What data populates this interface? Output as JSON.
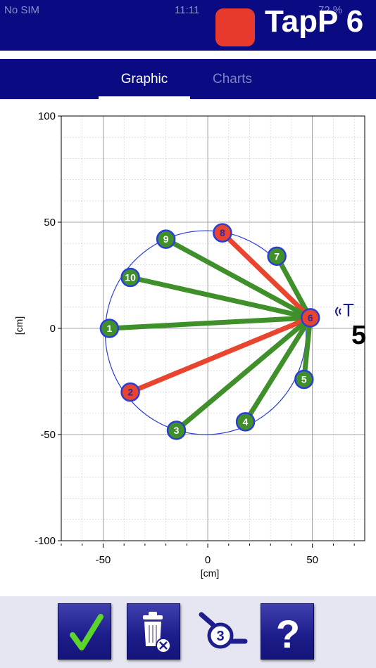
{
  "status_bar": {
    "carrier": "No SIM",
    "time": "11:11",
    "battery": "72 %"
  },
  "header": {
    "title": "TapP 6",
    "app_icon_color": "#e83a2c"
  },
  "tabs": [
    {
      "label": "Graphic",
      "selected": true
    },
    {
      "label": "Charts",
      "selected": false
    }
  ],
  "chart_data": {
    "type": "scatter",
    "xlabel": "[cm]",
    "ylabel": "[cm]",
    "xlim": [
      -70,
      75
    ],
    "ylim": [
      -100,
      100
    ],
    "x_ticks": [
      -50,
      0,
      50
    ],
    "y_ticks": [
      -100,
      -50,
      0,
      50,
      100
    ],
    "grid": true,
    "circle": {
      "cx": -1,
      "cy": -2,
      "r": 48
    },
    "hub": {
      "x": 49,
      "y": 5
    },
    "points": [
      {
        "label": "1",
        "x": -47,
        "y": 0,
        "status": "ok"
      },
      {
        "label": "2",
        "x": -37,
        "y": -30,
        "status": "bad"
      },
      {
        "label": "3",
        "x": -15,
        "y": -48,
        "status": "ok"
      },
      {
        "label": "4",
        "x": 18,
        "y": -44,
        "status": "ok"
      },
      {
        "label": "5",
        "x": 46,
        "y": -24,
        "status": "ok"
      },
      {
        "label": "6",
        "x": 49,
        "y": 5,
        "status": "bad"
      },
      {
        "label": "7",
        "x": 33,
        "y": 34,
        "status": "ok"
      },
      {
        "label": "8",
        "x": 7,
        "y": 45,
        "status": "bad"
      },
      {
        "label": "9",
        "x": -20,
        "y": 42,
        "status": "ok"
      },
      {
        "label": "10",
        "x": -37,
        "y": 24,
        "status": "ok"
      }
    ],
    "sensor": {
      "label": "T",
      "value": "5"
    },
    "colors": {
      "ok": "#3f8f2a",
      "bad": "#e8442e",
      "circle": "#2a3ed6",
      "node_border": "#2a3ed6"
    }
  },
  "toolbar": {
    "items": [
      {
        "name": "ok",
        "icon": "check-icon"
      },
      {
        "name": "clear",
        "icon": "trash-icon"
      },
      {
        "name": "tap-count",
        "icon": "tap-count-icon",
        "value": "3"
      },
      {
        "name": "help",
        "icon": "question-icon"
      }
    ]
  }
}
